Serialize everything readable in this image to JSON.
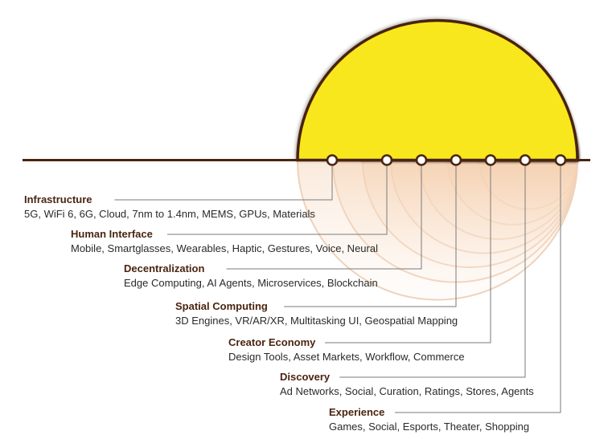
{
  "colors": {
    "line": "#4a2410",
    "text_title": "#4a2410",
    "text_desc": "#2a2a2a",
    "arcs": [
      "#f8e71a",
      "#f9d617",
      "#fac01a",
      "#f9a51b",
      "#f78d1e",
      "#f3731f",
      "#ea5a22"
    ],
    "reflection": "#f6dcc6"
  },
  "layers": [
    {
      "title": "Infrastructure",
      "desc": "5G, WiFi 6, 6G, Cloud, 7nm to 1.4nm, MEMS, GPUs, Materials"
    },
    {
      "title": "Human Interface",
      "desc": "Mobile, Smartglasses, Wearables, Haptic, Gestures, Voice, Neural"
    },
    {
      "title": "Decentralization",
      "desc": "Edge Computing, AI Agents, Microservices, Blockchain"
    },
    {
      "title": "Spatial Computing",
      "desc": "3D Engines, VR/AR/XR, Multitasking UI, Geospatial Mapping"
    },
    {
      "title": "Creator Economy",
      "desc": "Design Tools, Asset Markets, Workflow, Commerce"
    },
    {
      "title": "Discovery",
      "desc": "Ad Networks, Social, Curation, Ratings, Stores, Agents"
    },
    {
      "title": "Experience",
      "desc": "Games, Social, Esports, Theater, Shopping"
    }
  ]
}
